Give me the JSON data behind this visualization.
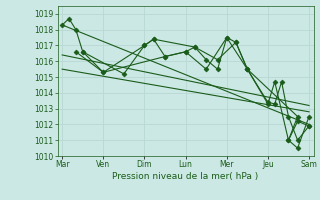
{
  "title": "",
  "xlabel": "Pression niveau de la mer( hPa )",
  "bg_color": "#cce8e4",
  "grid_color": "#aaccc8",
  "line_color": "#1a5c1a",
  "ylim": [
    1010,
    1019.5
  ],
  "yticks": [
    1010,
    1011,
    1012,
    1013,
    1014,
    1015,
    1016,
    1017,
    1018,
    1019
  ],
  "day_labels": [
    "Mar",
    "Ven",
    "Dim",
    "Lun",
    "Mer",
    "Jeu",
    "Sam"
  ],
  "day_positions": [
    0,
    18,
    36,
    54,
    72,
    90,
    108
  ],
  "xlim": [
    -2,
    110
  ],
  "series1_x": [
    0,
    3,
    6,
    9,
    18,
    36,
    40,
    45,
    54,
    58,
    63,
    68,
    72,
    76,
    81,
    90,
    93,
    96,
    99,
    103,
    108
  ],
  "series1_y": [
    1018.3,
    1018.7,
    1018.0,
    1016.6,
    1015.3,
    1017.0,
    1017.4,
    1016.3,
    1016.6,
    1016.9,
    1016.1,
    1015.5,
    1017.5,
    1017.2,
    1015.5,
    1013.4,
    1013.3,
    1014.7,
    1012.5,
    1011.0,
    1011.9
  ],
  "series2_x": [
    6,
    18,
    45,
    54,
    63,
    72,
    81,
    90,
    93,
    99,
    103,
    108
  ],
  "series2_y": [
    1016.6,
    1015.3,
    1016.3,
    1016.6,
    1015.5,
    1017.5,
    1015.5,
    1013.3,
    1014.7,
    1011.0,
    1012.2,
    1011.9
  ],
  "series3_x": [
    9,
    27,
    36,
    40,
    58,
    68,
    76,
    81,
    103,
    99,
    103,
    108
  ],
  "series3_y": [
    1016.6,
    1015.2,
    1017.0,
    1017.4,
    1016.9,
    1016.1,
    1017.2,
    1015.5,
    1012.5,
    1011.0,
    1010.5,
    1012.5
  ],
  "trend1_x": [
    0,
    108
  ],
  "trend1_y": [
    1018.3,
    1012.0
  ],
  "trend2_x": [
    0,
    108
  ],
  "trend2_y": [
    1016.4,
    1013.2
  ],
  "trend3_x": [
    0,
    108
  ],
  "trend3_y": [
    1015.5,
    1012.8
  ]
}
